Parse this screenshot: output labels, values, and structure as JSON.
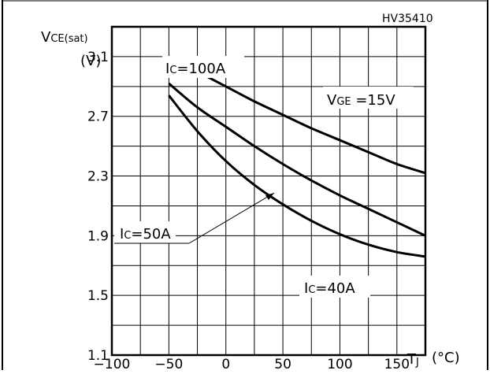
{
  "chart_data": {
    "type": "line",
    "code": "HV35410",
    "ylabel_main": "V",
    "ylabel_sub": "CE(sat)",
    "yunit": "(V)",
    "xlabel_main": "T",
    "xlabel_sub": "J",
    "xunit": "(°C)",
    "condition_main": "V",
    "condition_sub": "GE",
    "condition_value": " =15V",
    "xlim": [
      -100,
      175
    ],
    "ylim": [
      1.1,
      3.3
    ],
    "xticks": [
      -100,
      -50,
      0,
      50,
      100,
      150
    ],
    "yticks": [
      1.1,
      1.5,
      1.9,
      2.3,
      2.7,
      3.1
    ],
    "grid": true,
    "series": [
      {
        "name": "Ic=100A",
        "label_main": "I",
        "label_sub": "C",
        "label_value": "=100A",
        "x": [
          -50,
          -25,
          0,
          25,
          50,
          75,
          100,
          125,
          150,
          175
        ],
        "y": [
          3.1,
          3.0,
          2.9,
          2.8,
          2.71,
          2.62,
          2.54,
          2.46,
          2.38,
          2.32
        ]
      },
      {
        "name": "Ic=50A",
        "label_main": "I",
        "label_sub": "C",
        "label_value": "=50A",
        "x": [
          -50,
          -25,
          0,
          25,
          50,
          75,
          100,
          125,
          150,
          175
        ],
        "y": [
          2.92,
          2.76,
          2.63,
          2.5,
          2.38,
          2.27,
          2.17,
          2.08,
          1.99,
          1.9
        ]
      },
      {
        "name": "Ic=40A",
        "label_main": "I",
        "label_sub": "C",
        "label_value": "=40A",
        "x": [
          -50,
          -25,
          0,
          25,
          50,
          75,
          100,
          125,
          150,
          175
        ],
        "y": [
          2.84,
          2.6,
          2.4,
          2.24,
          2.11,
          2.0,
          1.91,
          1.84,
          1.79,
          1.76
        ]
      }
    ]
  }
}
